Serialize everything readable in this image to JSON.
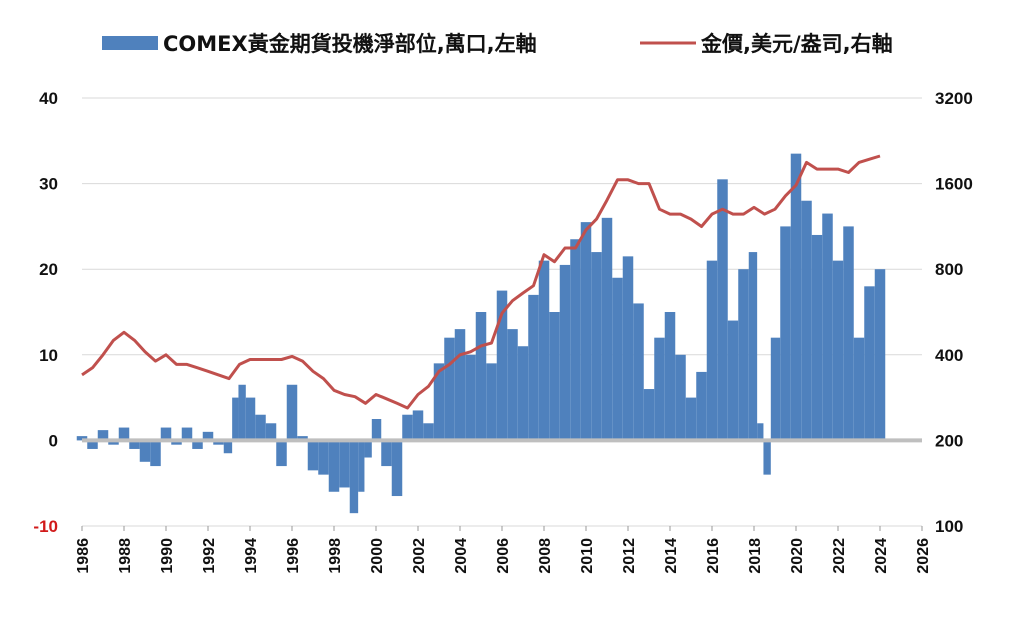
{
  "chart_data": {
    "type": "bar+line",
    "title": "",
    "legend": {
      "placement": "top",
      "entries": [
        {
          "name": "COMEX黃金期貨投機淨部位,萬口,左軸",
          "kind": "bar",
          "color": "#4f81bd"
        },
        {
          "name": "金價,美元/盎司,右軸",
          "kind": "line",
          "color": "#c0504d"
        }
      ]
    },
    "x_axis": {
      "range": [
        1986,
        2026
      ],
      "ticks": [
        "1986",
        "1988",
        "1990",
        "1992",
        "1994",
        "1996",
        "1998",
        "2000",
        "2002",
        "2004",
        "2006",
        "2008",
        "2010",
        "2012",
        "2014",
        "2016",
        "2018",
        "2020",
        "2022",
        "2024",
        "2026"
      ]
    },
    "left_axis": {
      "range": [
        -10,
        40
      ],
      "ticks": [
        "-10",
        "0",
        "10",
        "20",
        "30",
        "40"
      ]
    },
    "right_axis": {
      "scale": "log",
      "range": [
        100,
        3200
      ],
      "ticks": [
        "100",
        "200",
        "400",
        "800",
        "1600",
        "3200"
      ]
    },
    "grid": true,
    "series": [
      {
        "name": "COMEX黃金期貨投機淨部位,萬口,左軸",
        "kind": "bar",
        "axis": "left",
        "color": "#4f81bd",
        "x": [
          1986.0,
          1986.5,
          1987.0,
          1987.5,
          1988.0,
          1988.5,
          1989.0,
          1989.5,
          1990.0,
          1990.5,
          1991.0,
          1991.5,
          1992.0,
          1992.5,
          1993.0,
          1993.3,
          1993.6,
          1994.0,
          1994.5,
          1995.0,
          1995.5,
          1996.0,
          1996.5,
          1997.0,
          1997.5,
          1998.0,
          1998.5,
          1999.0,
          1999.3,
          1999.6,
          2000.0,
          2000.5,
          2001.0,
          2001.5,
          2002.0,
          2002.5,
          2003.0,
          2003.5,
          2004.0,
          2004.5,
          2005.0,
          2005.5,
          2006.0,
          2006.5,
          2007.0,
          2007.5,
          2008.0,
          2008.5,
          2009.0,
          2009.5,
          2010.0,
          2010.5,
          2011.0,
          2011.5,
          2012.0,
          2012.5,
          2013.0,
          2013.5,
          2014.0,
          2014.5,
          2015.0,
          2015.5,
          2016.0,
          2016.5,
          2017.0,
          2017.5,
          2018.0,
          2018.3,
          2018.6,
          2019.0,
          2019.5,
          2020.0,
          2020.5,
          2021.0,
          2021.5,
          2022.0,
          2022.5,
          2023.0,
          2023.5,
          2024.0
        ],
        "values": [
          0.5,
          -1.0,
          1.2,
          -0.5,
          1.5,
          -1.0,
          -2.5,
          -3.0,
          1.5,
          -0.5,
          1.5,
          -1.0,
          1.0,
          -0.5,
          -1.5,
          5.0,
          6.5,
          5.0,
          3.0,
          2.0,
          -3.0,
          6.5,
          0.5,
          -3.5,
          -4.0,
          -6.0,
          -5.5,
          -8.5,
          -6.0,
          -2.0,
          2.5,
          -3.0,
          -6.5,
          3.0,
          3.5,
          2.0,
          9.0,
          12.0,
          13.0,
          10.0,
          15.0,
          9.0,
          17.5,
          13.0,
          11.0,
          17.0,
          21.0,
          15.0,
          20.5,
          23.5,
          25.5,
          22.0,
          26.0,
          19.0,
          21.5,
          16.0,
          6.0,
          12.0,
          15.0,
          10.0,
          5.0,
          8.0,
          21.0,
          30.5,
          14.0,
          20.0,
          22.0,
          2.0,
          -4.0,
          12.0,
          25.0,
          33.5,
          28.0,
          24.0,
          26.5,
          21.0,
          25.0,
          12.0,
          18.0,
          20.0
        ]
      },
      {
        "name": "金價,美元/盎司,右軸",
        "kind": "line",
        "axis": "right",
        "color": "#c0504d",
        "x": [
          1986.0,
          1986.5,
          1987.0,
          1987.5,
          1988.0,
          1988.5,
          1989.0,
          1989.5,
          1990.0,
          1990.5,
          1991.0,
          1991.5,
          1992.0,
          1992.5,
          1993.0,
          1993.5,
          1994.0,
          1994.5,
          1995.0,
          1995.5,
          1996.0,
          1996.5,
          1997.0,
          1997.5,
          1998.0,
          1998.5,
          1999.0,
          1999.5,
          2000.0,
          2000.5,
          2001.0,
          2001.5,
          2002.0,
          2002.5,
          2003.0,
          2003.5,
          2004.0,
          2004.5,
          2005.0,
          2005.5,
          2006.0,
          2006.5,
          2007.0,
          2007.5,
          2008.0,
          2008.5,
          2009.0,
          2009.5,
          2010.0,
          2010.5,
          2011.0,
          2011.5,
          2012.0,
          2012.5,
          2013.0,
          2013.5,
          2014.0,
          2014.5,
          2015.0,
          2015.5,
          2016.0,
          2016.5,
          2017.0,
          2017.5,
          2018.0,
          2018.5,
          2019.0,
          2019.5,
          2020.0,
          2020.5,
          2021.0,
          2021.5,
          2022.0,
          2022.5,
          2023.0,
          2023.5,
          2024.0
        ],
        "values": [
          340,
          360,
          400,
          450,
          480,
          450,
          410,
          380,
          400,
          370,
          370,
          360,
          350,
          340,
          330,
          370,
          385,
          385,
          385,
          385,
          395,
          380,
          350,
          330,
          300,
          290,
          285,
          270,
          290,
          280,
          270,
          260,
          290,
          310,
          350,
          370,
          400,
          410,
          430,
          440,
          560,
          620,
          660,
          700,
          900,
          850,
          950,
          950,
          1100,
          1200,
          1400,
          1650,
          1650,
          1600,
          1600,
          1300,
          1250,
          1250,
          1200,
          1130,
          1250,
          1300,
          1250,
          1250,
          1320,
          1250,
          1300,
          1450,
          1580,
          1900,
          1800,
          1800,
          1800,
          1750,
          1900,
          1950,
          2000
        ]
      }
    ]
  }
}
